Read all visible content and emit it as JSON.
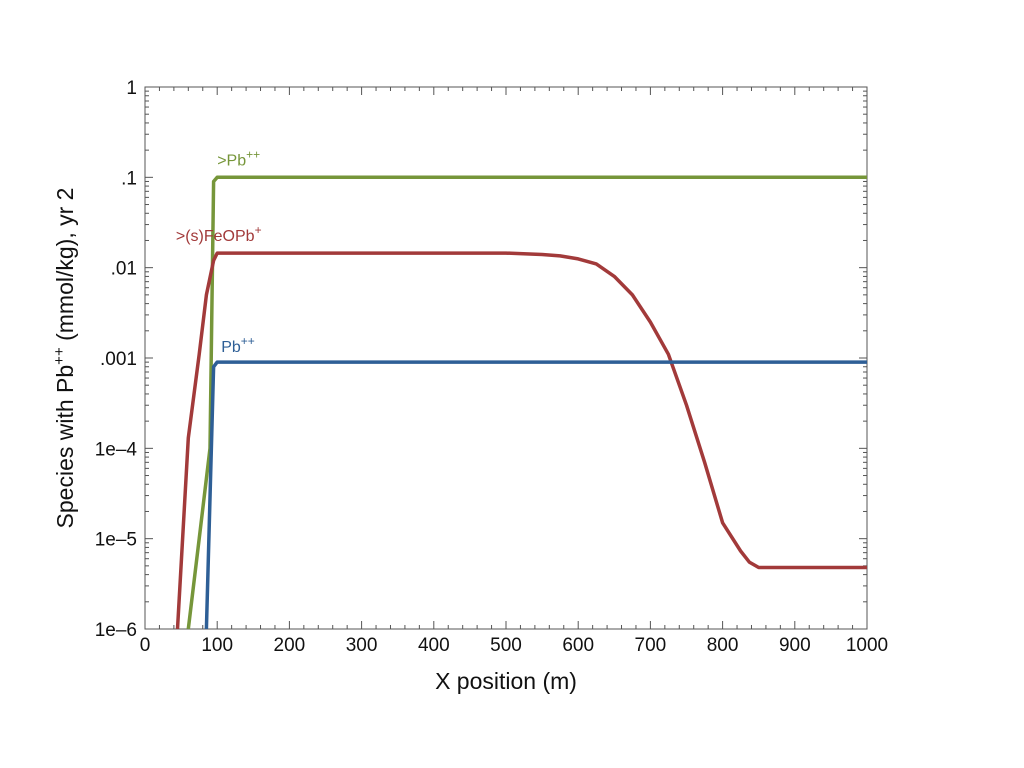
{
  "chart_data": {
    "type": "line",
    "xlabel": "X position (m)",
    "ylabel": {
      "prefix": "Species with Pb",
      "superscript": "++",
      "suffix": " (mmol/kg), yr 2"
    },
    "xlim": [
      0,
      1000
    ],
    "ylim": [
      1e-06,
      1
    ],
    "y_scale": "log",
    "x_ticks": [
      "0",
      "100",
      "200",
      "300",
      "400",
      "500",
      "600",
      "700",
      "800",
      "900",
      "1000"
    ],
    "y_ticks": [
      {
        "value": 1,
        "label": "1"
      },
      {
        "value": 0.1,
        "label": ".1"
      },
      {
        "value": 0.01,
        "label": ".01"
      },
      {
        "value": 0.001,
        "label": ".001"
      },
      {
        "value": 0.0001,
        "label": "1e–4"
      },
      {
        "value": 1e-05,
        "label": "1e–5"
      },
      {
        "value": 1e-06,
        "label": "1e–6"
      }
    ],
    "grid": false,
    "series": [
      {
        "name": ">Pb",
        "name_superscript": "++",
        "color": "#76963a",
        "x": [
          60,
          75,
          90,
          95,
          100,
          150,
          300,
          500,
          700,
          900,
          1000
        ],
        "y": [
          1e-06,
          1e-05,
          0.0001,
          0.09,
          0.1,
          0.1,
          0.1,
          0.1,
          0.1,
          0.1,
          0.1
        ]
      },
      {
        "name": ">(s)FeOPb",
        "name_superscript": "+",
        "color": "#a23a3a",
        "x": [
          45,
          60,
          75,
          85,
          95,
          100,
          200,
          300,
          400,
          500,
          550,
          575,
          600,
          625,
          650,
          675,
          700,
          725,
          750,
          775,
          800,
          825,
          837,
          850,
          875,
          900,
          1000
        ],
        "y": [
          1e-06,
          0.00013,
          0.0011,
          0.005,
          0.012,
          0.0145,
          0.0145,
          0.0145,
          0.0145,
          0.0145,
          0.014,
          0.0135,
          0.0125,
          0.011,
          0.008,
          0.005,
          0.0025,
          0.0011,
          0.0003,
          7e-05,
          1.5e-05,
          7.3e-06,
          5.5e-06,
          4.8e-06,
          4.8e-06,
          4.8e-06,
          4.8e-06
        ]
      },
      {
        "name": "Pb",
        "name_superscript": "++",
        "color": "#2e5f96",
        "x": [
          85,
          95,
          100,
          110,
          200,
          400,
          600,
          800,
          1000
        ],
        "y": [
          1e-06,
          0.0008,
          0.0009,
          0.0009,
          0.0009,
          0.0009,
          0.0009,
          0.0009,
          0.0009
        ]
      }
    ]
  }
}
